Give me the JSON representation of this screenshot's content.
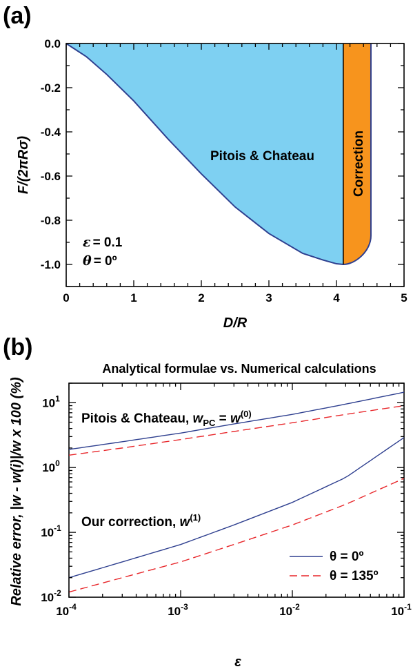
{
  "chart_data": [
    {
      "panel": "(a)",
      "type": "area",
      "xlabel": "D/R",
      "ylabel": "F/(2πRσ)",
      "xlim": [
        0,
        5
      ],
      "ylim": [
        -1.1,
        0.0
      ],
      "xticks": [
        "0",
        "1",
        "2",
        "3",
        "4",
        "5"
      ],
      "yticks": [
        "0.0",
        "-0.2",
        "-0.4",
        "-0.6",
        "-0.8",
        "-1.0"
      ],
      "colors": {
        "pitois": "#7ed0f2",
        "correction": "#f7941d",
        "curve": "#2e3f8f"
      },
      "regions": [
        {
          "name": "Pitois & Chateau",
          "x_range": [
            0,
            4.1
          ]
        },
        {
          "name": "Correction",
          "x_range": [
            4.1,
            4.51
          ]
        }
      ],
      "curve": {
        "x": [
          0,
          0.3,
          0.6,
          1.0,
          1.5,
          2.0,
          2.5,
          3.0,
          3.5,
          3.8,
          4.0,
          4.1
        ],
        "y": [
          0,
          -0.06,
          -0.14,
          -0.26,
          -0.43,
          -0.59,
          -0.74,
          -0.86,
          -0.95,
          -0.98,
          -0.997,
          -1.0
        ]
      },
      "correction_edge": {
        "x": 4.51,
        "y_range": [
          -0.87,
          0.0
        ]
      },
      "annotations": {
        "epsilon": "= 0.1",
        "theta": "= 0º"
      }
    },
    {
      "panel": "(b)",
      "type": "line",
      "title": "Analytical formulae vs. Numerical calculations",
      "xlabel": "ε",
      "ylabel": "Relative error, |w - w(i)|/w x 100 (%)",
      "xscale": "log",
      "yscale": "log",
      "xlim": [
        0.0001,
        0.1
      ],
      "ylim": [
        0.01,
        20
      ],
      "xticks": [
        {
          "base": "10",
          "exp": "-4"
        },
        {
          "base": "10",
          "exp": "-3"
        },
        {
          "base": "10",
          "exp": "-2"
        },
        {
          "base": "10",
          "exp": "-1"
        }
      ],
      "yticks": [
        {
          "base": "10",
          "exp": "-2"
        },
        {
          "base": "10",
          "exp": "-1"
        },
        {
          "base": "10",
          "exp": "0"
        },
        {
          "base": "10",
          "exp": "1"
        }
      ],
      "x": [
        0.0001,
        0.0003,
        0.001,
        0.003,
        0.01,
        0.03,
        0.1
      ],
      "series": [
        {
          "name": "θ = 0º",
          "group": "Pitois & Chateau",
          "style": "solid",
          "color": "#2e3f8f",
          "values": [
            1.9,
            2.5,
            3.4,
            4.7,
            6.6,
            9.5,
            14.5
          ]
        },
        {
          "name": "θ = 135º",
          "group": "Pitois & Chateau",
          "style": "dashed",
          "color": "#e8262a",
          "values": [
            1.55,
            2.0,
            2.7,
            3.6,
            4.9,
            6.6,
            9.0
          ]
        },
        {
          "name": "θ = 0º",
          "group": "Our correction",
          "style": "solid",
          "color": "#2e3f8f",
          "values": [
            0.02,
            0.035,
            0.065,
            0.13,
            0.29,
            0.7,
            2.9
          ]
        },
        {
          "name": "θ = 135º",
          "group": "Our correction",
          "style": "dashed",
          "color": "#e8262a",
          "values": [
            0.012,
            0.02,
            0.035,
            0.065,
            0.13,
            0.27,
            0.68
          ]
        }
      ],
      "annotations": {
        "pc_prefix": "Pitois & Chateau, ",
        "pc_w": "w",
        "pc_sub": "PC",
        "pc_eq": " = ",
        "pc_w2": "w",
        "pc_sup": "(0)",
        "corr_prefix": "Our correction, ",
        "corr_w": "w",
        "corr_sup": "(1)"
      },
      "legend": {
        "placement": "bottom-right",
        "entries": [
          "θ = 0º",
          "θ = 135º"
        ]
      }
    }
  ],
  "panel_labels": [
    "(a)",
    "(b)"
  ]
}
